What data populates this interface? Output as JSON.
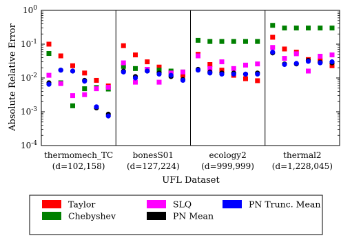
{
  "chart_data": {
    "type": "scatter",
    "xlabel": "UFL Dataset",
    "ylabel": "Absolute Relative Error",
    "y_scale": "log",
    "ylim": [
      0.0001,
      1
    ],
    "y_ticks": [
      {
        "value": 0.0001,
        "base": "10",
        "exp": "-4"
      },
      {
        "value": 0.001,
        "base": "10",
        "exp": "-3"
      },
      {
        "value": 0.01,
        "base": "10",
        "exp": "-2"
      },
      {
        "value": 0.1,
        "base": "10",
        "exp": "-1"
      },
      {
        "value": 1,
        "base": "10",
        "exp": "0"
      }
    ],
    "grid": false,
    "legend_position": "bottom",
    "groups": [
      {
        "name": "thermomech_TC",
        "dim": "(d=102,158)"
      },
      {
        "name": "bonesS01",
        "dim": "(d=127,224)"
      },
      {
        "name": "ecology2",
        "dim": "(d=999,999)"
      },
      {
        "name": "thermal2",
        "dim": "(d=1,228,045)"
      }
    ],
    "points_per_group": 6,
    "series": [
      {
        "name": "Taylor",
        "color": "#ff0000",
        "values": [
          [
            0.1,
            0.045,
            0.023,
            0.014,
            0.0085,
            0.0058
          ],
          [
            0.09,
            0.048,
            0.03,
            0.021,
            0.015,
            0.012
          ],
          [
            0.05,
            0.025,
            0.017,
            0.012,
            0.0095,
            0.0083
          ],
          [
            0.16,
            0.072,
            0.058,
            0.035,
            0.032,
            0.023
          ]
        ]
      },
      {
        "name": "Chebyshev",
        "color": "#008000",
        "values": [
          [
            0.053,
            0.0072,
            0.0015,
            0.0048,
            0.0052,
            0.0047
          ],
          [
            0.022,
            0.019,
            0.018,
            0.017,
            0.016,
            0.015
          ],
          [
            0.13,
            0.12,
            0.12,
            0.12,
            0.12,
            0.12
          ],
          [
            0.36,
            0.3,
            0.3,
            0.3,
            0.3,
            0.3
          ]
        ]
      },
      {
        "name": "SLQ",
        "color": "#ff00ff",
        "values": [
          [
            0.012,
            0.0068,
            0.003,
            0.0032,
            0.0048,
            0.0053
          ],
          [
            0.028,
            0.0075,
            0.018,
            0.0075,
            0.014,
            0.015
          ],
          [
            0.045,
            0.019,
            0.03,
            0.019,
            0.024,
            0.026
          ],
          [
            0.08,
            0.038,
            0.052,
            0.016,
            0.044,
            0.048
          ]
        ]
      },
      {
        "name": "PN Mean",
        "color": "#000000",
        "values": [
          [
            0.0072,
            0.017,
            0.016,
            0.0085,
            0.0013,
            0.00085
          ],
          [
            0.016,
            0.011,
            0.016,
            0.014,
            0.011,
            0.009
          ],
          [
            0.018,
            0.015,
            0.014,
            0.014,
            0.013,
            0.014
          ],
          [
            0.055,
            0.026,
            0.026,
            0.033,
            0.029,
            0.028
          ]
        ]
      },
      {
        "name": "PN Trunc. Mean",
        "color": "#0000ff",
        "values": [
          [
            0.0065,
            0.017,
            0.016,
            0.008,
            0.0014,
            0.00075
          ],
          [
            0.015,
            0.01,
            0.016,
            0.013,
            0.012,
            0.0085
          ],
          [
            0.017,
            0.014,
            0.013,
            0.013,
            0.013,
            0.013
          ],
          [
            0.058,
            0.025,
            0.027,
            0.031,
            0.028,
            0.03
          ]
        ]
      }
    ],
    "legend_order": [
      "Taylor",
      "SLQ",
      "PN Trunc. Mean",
      "Chebyshev",
      "PN Mean"
    ]
  }
}
